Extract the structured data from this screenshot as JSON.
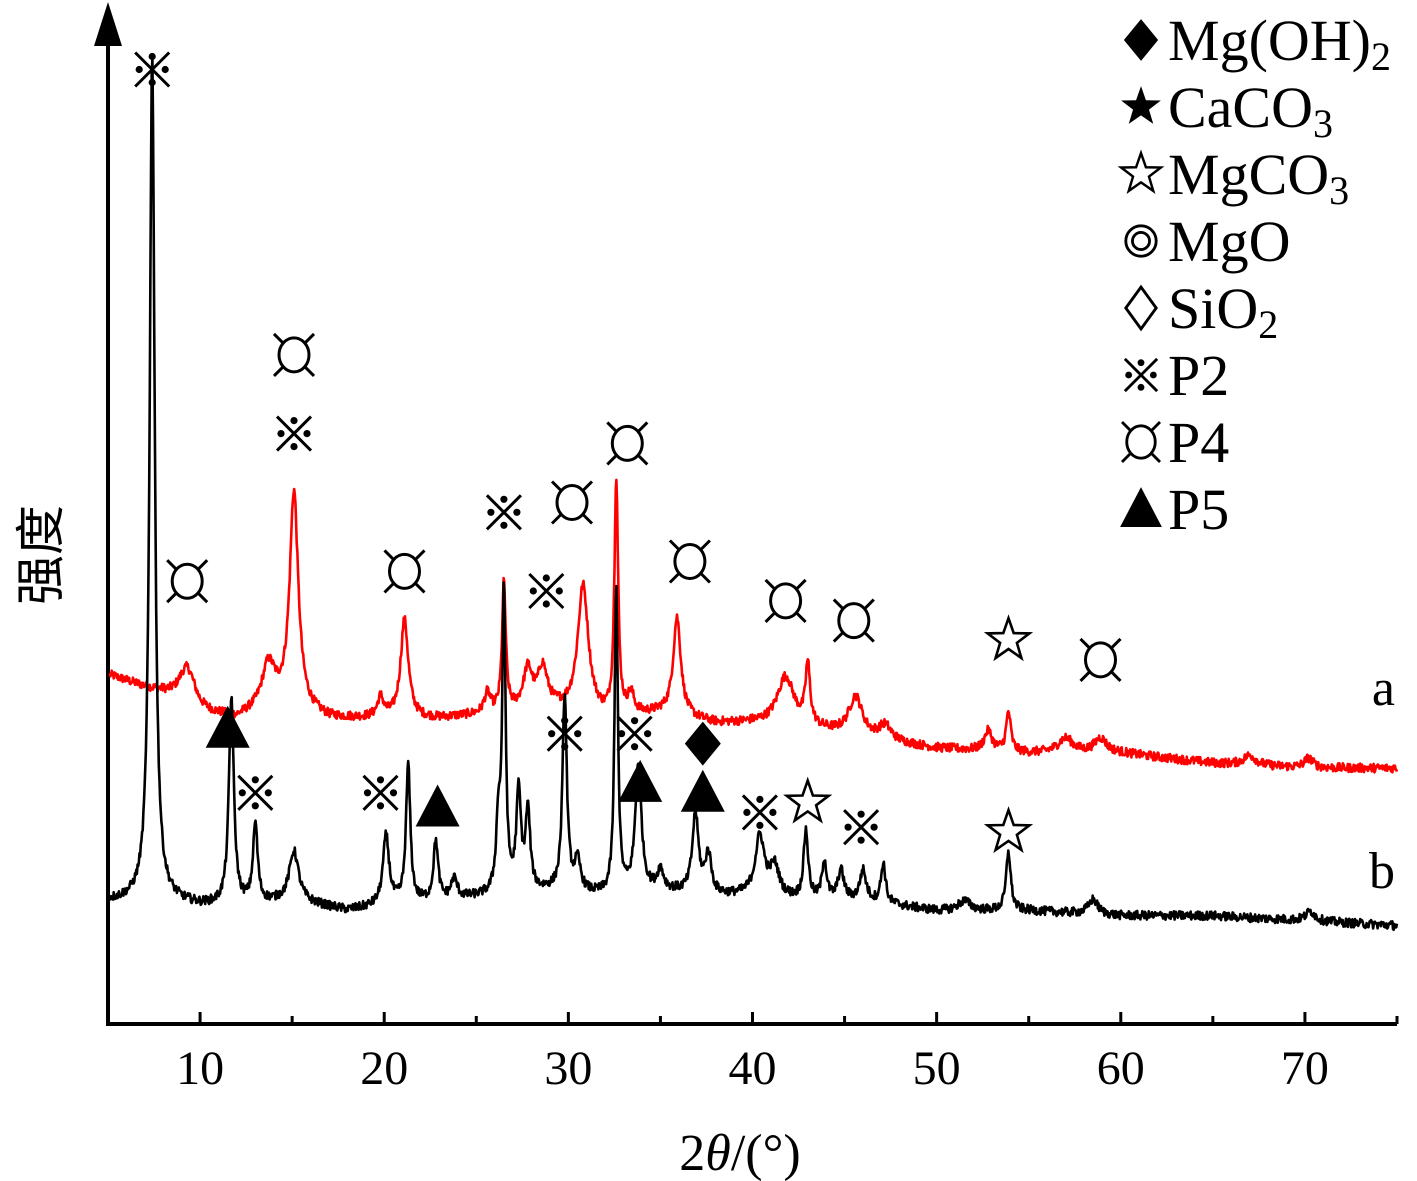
{
  "chart_data": {
    "type": "line",
    "xlabel": "2θ/(°)",
    "xlabel_parts": {
      "prefix": "2",
      "symbol": "θ",
      "suffix": "/(°)"
    },
    "ylabel": "强度",
    "xlim": [
      5,
      75
    ],
    "ylim": [
      0,
      100
    ],
    "xticks": [
      10,
      20,
      30,
      40,
      50,
      60,
      70
    ],
    "xtick_labels": [
      "10",
      "20",
      "30",
      "40",
      "50",
      "60",
      "70"
    ],
    "grid": false,
    "legend_position": "top-right",
    "legend": [
      {
        "symbol": "filled-diamond",
        "base": "Mg(OH)",
        "sub": "2"
      },
      {
        "symbol": "filled-star",
        "base": "CaCO",
        "sub": "3"
      },
      {
        "symbol": "open-star",
        "base": "MgCO",
        "sub": "3"
      },
      {
        "symbol": "double-circle",
        "base": "MgO",
        "sub": ""
      },
      {
        "symbol": "open-diamond",
        "base": "SiO",
        "sub": "2"
      },
      {
        "symbol": "reference-mark",
        "base": "P2",
        "sub": ""
      },
      {
        "symbol": "currency-sign",
        "base": "P4",
        "sub": ""
      },
      {
        "symbol": "filled-triangle",
        "base": "P5",
        "sub": ""
      }
    ],
    "series": [
      {
        "label": "a",
        "color": "#ff0000",
        "baseline": [
          [
            5,
            35.5
          ],
          [
            8,
            33.5
          ],
          [
            10,
            31.5
          ],
          [
            12,
            31
          ],
          [
            14,
            32.5
          ],
          [
            17,
            31
          ],
          [
            20,
            31
          ],
          [
            23,
            31
          ],
          [
            26,
            31.5
          ],
          [
            29,
            32
          ],
          [
            32,
            31
          ],
          [
            35,
            31.5
          ],
          [
            38,
            30.5
          ],
          [
            40,
            30.5
          ],
          [
            43,
            30
          ],
          [
            46,
            29
          ],
          [
            50,
            28
          ],
          [
            55,
            27.5
          ],
          [
            60,
            27.5
          ],
          [
            65,
            26.5
          ],
          [
            70,
            26
          ],
          [
            75,
            26
          ]
        ],
        "peaks": [
          [
            9.3,
            4,
            0.55
          ],
          [
            13.7,
            4,
            0.4
          ],
          [
            15.1,
            22,
            0.28
          ],
          [
            19.8,
            2,
            0.2
          ],
          [
            21.1,
            10,
            0.25
          ],
          [
            25.6,
            2,
            0.2
          ],
          [
            26.5,
            13,
            0.12
          ],
          [
            27.8,
            4,
            0.3
          ],
          [
            28.6,
            4,
            0.3
          ],
          [
            30.8,
            13,
            0.35
          ],
          [
            32.6,
            24,
            0.12
          ],
          [
            33.4,
            2,
            0.2
          ],
          [
            35.9,
            10,
            0.25
          ],
          [
            41.8,
            5,
            0.55
          ],
          [
            43.0,
            6,
            0.15
          ],
          [
            45.6,
            4,
            0.45
          ],
          [
            47.2,
            1.5,
            0.4
          ],
          [
            52.8,
            2,
            0.25
          ],
          [
            53.9,
            4,
            0.15
          ],
          [
            57.0,
            1.5,
            0.5
          ],
          [
            58.9,
            1.5,
            0.4
          ],
          [
            67,
            1,
            0.4
          ],
          [
            70.2,
            1,
            0.3
          ]
        ],
        "markers": [
          {
            "x": 9.3,
            "y": 45,
            "symbol": "currency-sign"
          },
          {
            "x": 15.1,
            "y": 60,
            "symbol": "reference-mark"
          },
          {
            "x": 15.1,
            "y": 68,
            "symbol": "currency-sign"
          },
          {
            "x": 21.1,
            "y": 46,
            "symbol": "currency-sign"
          },
          {
            "x": 26.5,
            "y": 52,
            "symbol": "reference-mark"
          },
          {
            "x": 28.8,
            "y": 44,
            "symbol": "reference-mark"
          },
          {
            "x": 30.2,
            "y": 53,
            "symbol": "currency-sign"
          },
          {
            "x": 33.2,
            "y": 59,
            "symbol": "currency-sign"
          },
          {
            "x": 36.6,
            "y": 47,
            "symbol": "currency-sign"
          },
          {
            "x": 41.8,
            "y": 43,
            "symbol": "currency-sign"
          },
          {
            "x": 45.5,
            "y": 41,
            "symbol": "currency-sign"
          },
          {
            "x": 53.9,
            "y": 39,
            "symbol": "open-star"
          },
          {
            "x": 58.9,
            "y": 37,
            "symbol": "currency-sign"
          }
        ]
      },
      {
        "label": "b",
        "color": "#000000",
        "baseline": [
          [
            5,
            12.5
          ],
          [
            8,
            12.5
          ],
          [
            10,
            12
          ],
          [
            12,
            12
          ],
          [
            15,
            12.5
          ],
          [
            18,
            11.5
          ],
          [
            20,
            12
          ],
          [
            23,
            12.5
          ],
          [
            26,
            13
          ],
          [
            29,
            13.5
          ],
          [
            32,
            13
          ],
          [
            35,
            13.5
          ],
          [
            38,
            13
          ],
          [
            40,
            13
          ],
          [
            43,
            12.5
          ],
          [
            46,
            12.5
          ],
          [
            50,
            11.5
          ],
          [
            55,
            11.5
          ],
          [
            60,
            11
          ],
          [
            65,
            11
          ],
          [
            70,
            10.5
          ],
          [
            75,
            10
          ]
        ],
        "peaks": [
          [
            7.4,
            86,
            0.16
          ],
          [
            11.7,
            21,
            0.16
          ],
          [
            13.0,
            8,
            0.15
          ],
          [
            15.1,
            5,
            0.3
          ],
          [
            20.1,
            7,
            0.2
          ],
          [
            21.3,
            14,
            0.14
          ],
          [
            22.8,
            6,
            0.15
          ],
          [
            23.8,
            2,
            0.2
          ],
          [
            26.2,
            7,
            0.14
          ],
          [
            26.5,
            30,
            0.11
          ],
          [
            27.3,
            10,
            0.15
          ],
          [
            27.8,
            8,
            0.15
          ],
          [
            29.8,
            20,
            0.14
          ],
          [
            30.5,
            3,
            0.2
          ],
          [
            32.6,
            31,
            0.11
          ],
          [
            33.8,
            13,
            0.2
          ],
          [
            35.0,
            2,
            0.2
          ],
          [
            36.9,
            8,
            0.2
          ],
          [
            37.6,
            4,
            0.2
          ],
          [
            40.4,
            6,
            0.3
          ],
          [
            41.2,
            3,
            0.3
          ],
          [
            42.9,
            7,
            0.15
          ],
          [
            43.9,
            4,
            0.15
          ],
          [
            44.8,
            3,
            0.2
          ],
          [
            46.0,
            3,
            0.2
          ],
          [
            47.1,
            4,
            0.15
          ],
          [
            51.5,
            1,
            0.4
          ],
          [
            53.9,
            6,
            0.15
          ],
          [
            58.5,
            1.5,
            0.3
          ],
          [
            70.3,
            1,
            0.3
          ]
        ],
        "markers": [
          {
            "x": 7.4,
            "y": 97,
            "symbol": "reference-mark"
          },
          {
            "x": 11.5,
            "y": 30,
            "symbol": "filled-triangle"
          },
          {
            "x": 13.0,
            "y": 23.5,
            "symbol": "reference-mark"
          },
          {
            "x": 19.8,
            "y": 23.5,
            "symbol": "reference-mark"
          },
          {
            "x": 22.9,
            "y": 22,
            "symbol": "filled-triangle"
          },
          {
            "x": 29.8,
            "y": 29.5,
            "symbol": "reference-mark"
          },
          {
            "x": 33.6,
            "y": 29.5,
            "symbol": "reference-mark"
          },
          {
            "x": 33.9,
            "y": 24.5,
            "symbol": "filled-triangle"
          },
          {
            "x": 37.3,
            "y": 28.5,
            "symbol": "filled-diamond"
          },
          {
            "x": 37.3,
            "y": 23.5,
            "symbol": "filled-triangle"
          },
          {
            "x": 40.4,
            "y": 21.5,
            "symbol": "reference-mark"
          },
          {
            "x": 43.0,
            "y": 22.5,
            "symbol": "open-star"
          },
          {
            "x": 45.9,
            "y": 20,
            "symbol": "reference-mark"
          },
          {
            "x": 53.9,
            "y": 19.5,
            "symbol": "open-star"
          }
        ]
      }
    ]
  }
}
